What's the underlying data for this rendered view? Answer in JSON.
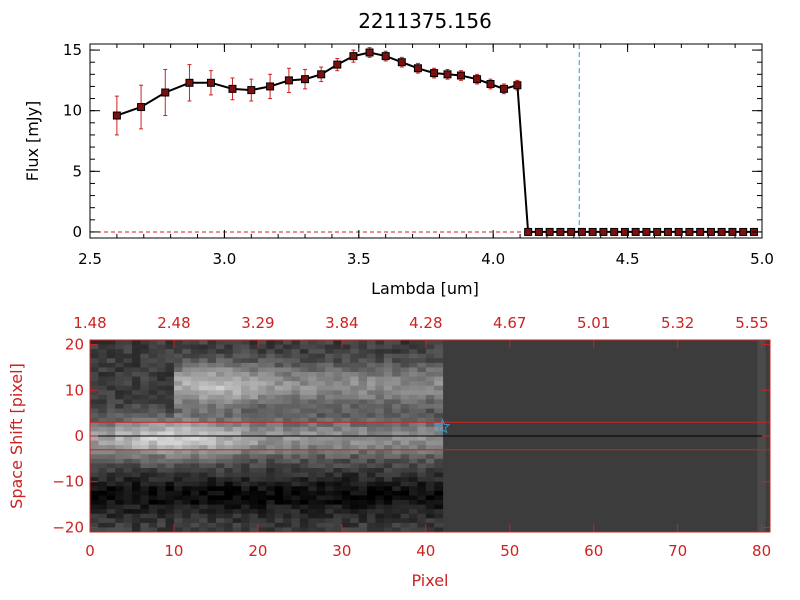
{
  "colors": {
    "axis_top": "#000000",
    "axis_bottom": "#cc2222",
    "errorbar": "#cc2222",
    "marker_fill": "#7a1010",
    "line": "#000000",
    "vline": "#3399cc",
    "zero_line": "#cc2222",
    "star": "#3399cc"
  },
  "chart_data": [
    {
      "type": "line",
      "title": "2211375.156",
      "xlabel": "Lambda [um]",
      "ylabel": "Flux [mJy]",
      "xlim": [
        2.5,
        5.0
      ],
      "ylim": [
        -0.5,
        15.5
      ],
      "xticks": [
        2.5,
        3.0,
        3.5,
        4.0,
        4.5,
        5.0
      ],
      "xtick_labels": [
        "2.5",
        "3.0",
        "3.5",
        "4.0",
        "4.5",
        "5.0"
      ],
      "yticks": [
        0,
        5,
        10,
        15
      ],
      "ytick_labels": [
        "0",
        "5",
        "10",
        "15"
      ],
      "vline_x": 4.32,
      "zero_line_y": 0,
      "series": [
        {
          "x": [
            2.6,
            2.69,
            2.78,
            2.87,
            2.95,
            3.03,
            3.1,
            3.17,
            3.24,
            3.3,
            3.36,
            3.42,
            3.48,
            3.54,
            3.6,
            3.66,
            3.72,
            3.78,
            3.83,
            3.88,
            3.94,
            3.99,
            4.04,
            4.09,
            4.13,
            4.17,
            4.21,
            4.25,
            4.29,
            4.33,
            4.37,
            4.41,
            4.45,
            4.49,
            4.53,
            4.57,
            4.61,
            4.65,
            4.69,
            4.73,
            4.77,
            4.81,
            4.85,
            4.89,
            4.93,
            4.97
          ],
          "y": [
            9.6,
            10.3,
            11.5,
            12.3,
            12.3,
            11.8,
            11.7,
            12.0,
            12.5,
            12.6,
            13.0,
            13.8,
            14.5,
            14.8,
            14.5,
            14.0,
            13.5,
            13.1,
            13.0,
            12.9,
            12.6,
            12.2,
            11.8,
            12.1,
            0,
            0,
            0,
            0,
            0,
            0,
            0,
            0,
            0,
            0,
            0,
            0,
            0,
            0,
            0,
            0,
            0,
            0,
            0,
            0,
            0,
            0
          ],
          "err": [
            1.6,
            1.8,
            1.9,
            1.5,
            1.0,
            0.9,
            0.9,
            1.0,
            1.0,
            0.8,
            0.6,
            0.5,
            0.5,
            0.4,
            0.4,
            0.4,
            0.4,
            0.4,
            0.4,
            0.4,
            0.4,
            0.4,
            0.4,
            0.4,
            0,
            0,
            0,
            0,
            0,
            0,
            0,
            0,
            0,
            0,
            0,
            0,
            0,
            0,
            0,
            0,
            0,
            0,
            0,
            0,
            0,
            0
          ]
        }
      ]
    },
    {
      "type": "heatmap",
      "xlabel": "Pixel",
      "ylabel": "Space Shift [pixel]",
      "xlim": [
        0,
        81
      ],
      "ylim": [
        -21,
        21
      ],
      "xticks": [
        0,
        10,
        20,
        30,
        40,
        50,
        60,
        70,
        80
      ],
      "xtick_labels": [
        "0",
        "10",
        "20",
        "30",
        "40",
        "50",
        "60",
        "70",
        "80"
      ],
      "yticks": [
        -20,
        -10,
        0,
        10,
        20
      ],
      "ytick_labels": [
        "−20",
        "−10",
        "0",
        "10",
        "20"
      ],
      "top_axis_ticks": [
        0,
        10,
        20,
        30,
        40,
        50,
        60,
        70,
        80
      ],
      "top_axis_labels": [
        "1.48",
        "2.48",
        "3.29",
        "3.84",
        "4.28",
        "4.67",
        "5.01",
        "5.32",
        "5.55"
      ],
      "extraction_band": [
        -3,
        3
      ],
      "star_pixel": 42
    }
  ]
}
